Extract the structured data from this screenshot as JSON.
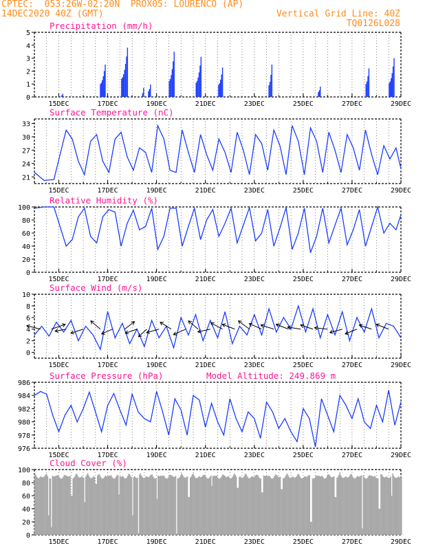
{
  "header": {
    "line1_left": "CPTEC:  053:26W-02:20N  PROX05: LOURENCO (AP)",
    "line2_left": "14DEC2020 40Z (GMT)",
    "line2_right": "Vertical Grid Line: 40Z",
    "line3_right": "TQ0126L028"
  },
  "colors": {
    "header": "#ff8c1a",
    "title": "#ff1493",
    "line": "#1a3cff",
    "bar": "#1a3cff",
    "cloud": "#a9a9a9",
    "arrow": "#000000"
  },
  "chart_data": [
    {
      "type": "bar",
      "title": "Precipitation (mm/h)",
      "ylim": [
        0,
        5
      ],
      "yticks": [
        0,
        1,
        2,
        3,
        4,
        5
      ],
      "xticks": [
        "15DEC",
        "17DEC",
        "19DEC",
        "21DEC",
        "23DEC",
        "25DEC",
        "27DEC",
        "29DEC"
      ],
      "x_unit": "day index from 14DEC 00Z",
      "events": [
        {
          "day": 1.15,
          "peak": 0.3,
          "width": 0.05
        },
        {
          "day": 2.9,
          "peak": 2.8,
          "width": 0.22
        },
        {
          "day": 3.8,
          "peak": 4.0,
          "width": 0.25
        },
        {
          "day": 4.45,
          "peak": 0.7,
          "width": 0.04
        },
        {
          "day": 4.75,
          "peak": 1.2,
          "width": 0.1
        },
        {
          "day": 5.7,
          "peak": 3.5,
          "width": 0.2
        },
        {
          "day": 6.8,
          "peak": 3.1,
          "width": 0.2
        },
        {
          "day": 7.7,
          "peak": 2.6,
          "width": 0.18
        },
        {
          "day": 9.7,
          "peak": 2.5,
          "width": 0.12
        },
        {
          "day": 11.7,
          "peak": 1.0,
          "width": 0.1
        },
        {
          "day": 13.7,
          "peak": 2.8,
          "width": 0.15
        },
        {
          "day": 14.7,
          "peak": 3.0,
          "width": 0.2
        }
      ]
    },
    {
      "type": "line",
      "title": "Surface Temperature (nC)",
      "ylim": [
        19.5,
        34
      ],
      "yticks": [
        21,
        24,
        27,
        30,
        33
      ],
      "xticks": [
        "15DEC",
        "17DEC",
        "19DEC",
        "21DEC",
        "23DEC",
        "25DEC",
        "27DEC",
        "29DEC"
      ],
      "x": [
        0,
        0.4,
        0.8,
        1.05,
        1.3,
        1.55,
        1.8,
        2.05,
        2.3,
        2.55,
        2.8,
        3.05,
        3.3,
        3.55,
        3.8,
        4.05,
        4.3,
        4.55,
        4.8,
        5.05,
        5.3,
        5.55,
        5.8,
        6.05,
        6.3,
        6.55,
        6.8,
        7.05,
        7.3,
        7.55,
        7.8,
        8.05,
        8.3,
        8.55,
        8.8,
        9.05,
        9.3,
        9.55,
        9.8,
        10.05,
        10.3,
        10.55,
        10.8,
        11.05,
        11.3,
        11.55,
        11.8,
        12.05,
        12.3,
        12.55,
        12.8,
        13.05,
        13.3,
        13.55,
        13.8,
        14.05,
        14.3,
        14.55,
        14.8,
        15.0
      ],
      "y": [
        22,
        20.2,
        20.4,
        26,
        31.5,
        29.5,
        24.5,
        21.5,
        29,
        30.5,
        24.5,
        22,
        29.5,
        31,
        25.5,
        22.5,
        27.5,
        26.5,
        22,
        32.5,
        29.5,
        22.5,
        22,
        31.5,
        26.5,
        22,
        30.5,
        26,
        22.5,
        29.5,
        26.5,
        22,
        31,
        27,
        21.5,
        30.5,
        28.5,
        22.5,
        31.5,
        28,
        21.5,
        32.5,
        29,
        21.5,
        32,
        29,
        22,
        31,
        27,
        22,
        30.5,
        27.5,
        22.5,
        31.5,
        26,
        21.5,
        28,
        25,
        27.5,
        22.8
      ]
    },
    {
      "type": "line",
      "title": "Relative Humidity (%)",
      "ylim": [
        0,
        100
      ],
      "yticks": [
        0,
        20,
        40,
        60,
        80,
        100
      ],
      "xticks": [
        "15DEC",
        "17DEC",
        "19DEC",
        "21DEC",
        "23DEC",
        "25DEC",
        "27DEC",
        "29DEC"
      ],
      "x": [
        0,
        0.4,
        0.8,
        1.05,
        1.3,
        1.55,
        1.8,
        2.05,
        2.3,
        2.55,
        2.8,
        3.05,
        3.3,
        3.55,
        3.8,
        4.05,
        4.3,
        4.55,
        4.8,
        5.05,
        5.3,
        5.55,
        5.8,
        6.05,
        6.3,
        6.55,
        6.8,
        7.05,
        7.3,
        7.55,
        7.8,
        8.05,
        8.3,
        8.55,
        8.8,
        9.05,
        9.3,
        9.55,
        9.8,
        10.05,
        10.3,
        10.55,
        10.8,
        11.05,
        11.3,
        11.55,
        11.8,
        12.05,
        12.3,
        12.55,
        12.8,
        13.05,
        13.3,
        13.55,
        13.8,
        14.05,
        14.3,
        14.55,
        14.8,
        15.0
      ],
      "y": [
        98,
        100,
        100,
        70,
        40,
        50,
        85,
        98,
        55,
        45,
        85,
        96,
        92,
        40,
        75,
        95,
        65,
        70,
        98,
        35,
        55,
        98,
        98,
        40,
        70,
        98,
        50,
        80,
        96,
        55,
        75,
        98,
        45,
        72,
        99,
        48,
        60,
        96,
        40,
        68,
        99,
        35,
        60,
        98,
        30,
        55,
        98,
        45,
        72,
        98,
        42,
        65,
        96,
        40,
        70,
        100,
        60,
        75,
        65,
        88
      ]
    },
    {
      "type": "line",
      "title": "Surface Wind (m/s)",
      "ylim": [
        -1,
        10
      ],
      "yticks": [
        0,
        2,
        4,
        6,
        8,
        10
      ],
      "xticks": [
        "15DEC",
        "17DEC",
        "19DEC",
        "21DEC",
        "23DEC",
        "25DEC",
        "27DEC",
        "29DEC"
      ],
      "x": [
        0,
        0.3,
        0.6,
        0.9,
        1.2,
        1.5,
        1.8,
        2.1,
        2.4,
        2.7,
        3.0,
        3.3,
        3.6,
        3.9,
        4.2,
        4.5,
        4.8,
        5.1,
        5.4,
        5.7,
        6.0,
        6.3,
        6.6,
        6.9,
        7.2,
        7.5,
        7.8,
        8.1,
        8.4,
        8.7,
        9.0,
        9.3,
        9.6,
        9.9,
        10.2,
        10.5,
        10.8,
        11.1,
        11.4,
        11.7,
        12.0,
        12.3,
        12.6,
        12.9,
        13.2,
        13.5,
        13.8,
        14.1,
        14.4,
        14.7,
        15.0
      ],
      "y": [
        3,
        4.5,
        2.8,
        5.2,
        3.5,
        5.5,
        2.0,
        4.5,
        3.0,
        0.5,
        7.0,
        2.5,
        5.0,
        1.5,
        4.0,
        1.0,
        5.5,
        2.5,
        4.5,
        0.8,
        6.0,
        3.0,
        6.5,
        2.0,
        5.5,
        2.5,
        7.0,
        1.5,
        4.5,
        3.0,
        6.5,
        3.0,
        7.5,
        3.5,
        6.0,
        4.0,
        8.0,
        3.5,
        7.5,
        2.5,
        6.5,
        3.0,
        7.0,
        2.0,
        6.0,
        3.5,
        7.5,
        2.5,
        5.0,
        4.5,
        2.5
      ],
      "wind_vectors": [
        {
          "day": 0.25,
          "dx": -1.0,
          "dy": 0.25
        },
        {
          "day": 0.7,
          "dx": 1.0,
          "dy": 0.35
        },
        {
          "day": 1.3,
          "dx": -0.8,
          "dy": -0.15
        },
        {
          "day": 2.0,
          "dx": -0.9,
          "dy": -0.3
        },
        {
          "day": 2.7,
          "dx": -0.7,
          "dy": 0.6
        },
        {
          "day": 3.2,
          "dx": -0.8,
          "dy": -0.35
        },
        {
          "day": 3.7,
          "dx": 0.7,
          "dy": 0.55
        },
        {
          "day": 4.2,
          "dx": -0.85,
          "dy": -0.3
        },
        {
          "day": 4.6,
          "dx": -0.6,
          "dy": -0.55
        },
        {
          "day": 5.1,
          "dx": -0.9,
          "dy": -0.25
        },
        {
          "day": 5.6,
          "dx": -0.8,
          "dy": 0.5
        },
        {
          "day": 6.2,
          "dx": -0.9,
          "dy": -0.4
        },
        {
          "day": 6.7,
          "dx": -0.7,
          "dy": 0.6
        },
        {
          "day": 7.2,
          "dx": -0.9,
          "dy": -0.2
        },
        {
          "day": 7.7,
          "dx": -0.85,
          "dy": 0.45
        },
        {
          "day": 8.2,
          "dx": -0.9,
          "dy": 0.35
        },
        {
          "day": 8.8,
          "dx": -0.8,
          "dy": 0.6
        },
        {
          "day": 9.3,
          "dx": -0.9,
          "dy": 0.4
        },
        {
          "day": 9.8,
          "dx": -0.95,
          "dy": 0.3
        },
        {
          "day": 10.4,
          "dx": -0.9,
          "dy": 0.35
        },
        {
          "day": 10.9,
          "dx": -0.95,
          "dy": 0.15
        },
        {
          "day": 11.4,
          "dx": -0.9,
          "dy": 0.3
        },
        {
          "day": 12.0,
          "dx": -0.95,
          "dy": 0.1
        },
        {
          "day": 12.6,
          "dx": -0.9,
          "dy": -0.25
        },
        {
          "day": 13.2,
          "dx": -0.85,
          "dy": -0.35
        },
        {
          "day": 13.8,
          "dx": -0.9,
          "dy": 0.3
        },
        {
          "day": 14.5,
          "dx": -0.9,
          "dy": 0.35
        }
      ]
    },
    {
      "type": "line",
      "title": "Surface Pressure (hPa)",
      "annotation": "Model Altitude: 249.869 m",
      "ylim": [
        976,
        986
      ],
      "yticks": [
        976,
        978,
        980,
        982,
        984,
        986
      ],
      "xticks": [
        "15DEC",
        "17DEC",
        "19DEC",
        "21DEC",
        "23DEC",
        "25DEC",
        "27DEC",
        "29DEC"
      ],
      "x": [
        0,
        0.25,
        0.5,
        0.75,
        1.0,
        1.25,
        1.5,
        1.75,
        2.0,
        2.25,
        2.5,
        2.75,
        3.0,
        3.25,
        3.5,
        3.75,
        4.0,
        4.25,
        4.5,
        4.75,
        5.0,
        5.25,
        5.5,
        5.75,
        6.0,
        6.25,
        6.5,
        6.75,
        7.0,
        7.25,
        7.5,
        7.75,
        8.0,
        8.25,
        8.5,
        8.75,
        9.0,
        9.25,
        9.5,
        9.75,
        10.0,
        10.25,
        10.5,
        10.75,
        11.0,
        11.25,
        11.5,
        11.75,
        12.0,
        12.25,
        12.5,
        12.75,
        13.0,
        13.25,
        13.5,
        13.75,
        14.0,
        14.25,
        14.5,
        14.75,
        15.0
      ],
      "y": [
        984,
        984.6,
        984.2,
        981,
        978.5,
        981,
        982.5,
        980,
        982,
        984.5,
        981.5,
        978.5,
        982.5,
        984.3,
        981.8,
        979.5,
        984.2,
        981.5,
        980.5,
        980,
        984.6,
        981.5,
        978,
        983.5,
        981.8,
        978,
        984,
        983.3,
        979.2,
        982.8,
        980,
        978,
        983.5,
        980.5,
        978.5,
        981.5,
        980.5,
        977.5,
        983,
        981.5,
        979,
        980.5,
        978.5,
        977,
        982,
        980.5,
        976.2,
        983.5,
        981,
        978.5,
        984,
        982.5,
        980.5,
        983.5,
        980,
        979,
        982.5,
        980,
        984.8,
        979.5,
        983
      ]
    },
    {
      "type": "bar",
      "title": "Cloud Cover (%)",
      "ylim": [
        0,
        100
      ],
      "yticks": [
        0,
        20,
        40,
        60,
        80,
        100
      ],
      "xticks": [
        "15DEC",
        "17DEC",
        "19DEC",
        "21DEC",
        "23DEC",
        "25DEC",
        "27DEC",
        "29DEC"
      ],
      "baseline_percent": 95,
      "dips": [
        {
          "day": 0.55,
          "value": 30
        },
        {
          "day": 0.68,
          "value": 12
        },
        {
          "day": 1.5,
          "value": 60
        },
        {
          "day": 2.05,
          "value": 50
        },
        {
          "day": 2.5,
          "value": 78
        },
        {
          "day": 3.45,
          "value": 62
        },
        {
          "day": 4.0,
          "value": 30
        },
        {
          "day": 4.25,
          "value": 3
        },
        {
          "day": 5.0,
          "value": 55
        },
        {
          "day": 5.8,
          "value": 2
        },
        {
          "day": 6.3,
          "value": 58
        },
        {
          "day": 7.25,
          "value": 75
        },
        {
          "day": 8.3,
          "value": 72
        },
        {
          "day": 9.3,
          "value": 65
        },
        {
          "day": 10.1,
          "value": 70
        },
        {
          "day": 11.3,
          "value": 20
        },
        {
          "day": 12.3,
          "value": 58
        },
        {
          "day": 13.4,
          "value": 10
        },
        {
          "day": 14.1,
          "value": 40
        },
        {
          "day": 14.6,
          "value": 60
        }
      ]
    }
  ]
}
